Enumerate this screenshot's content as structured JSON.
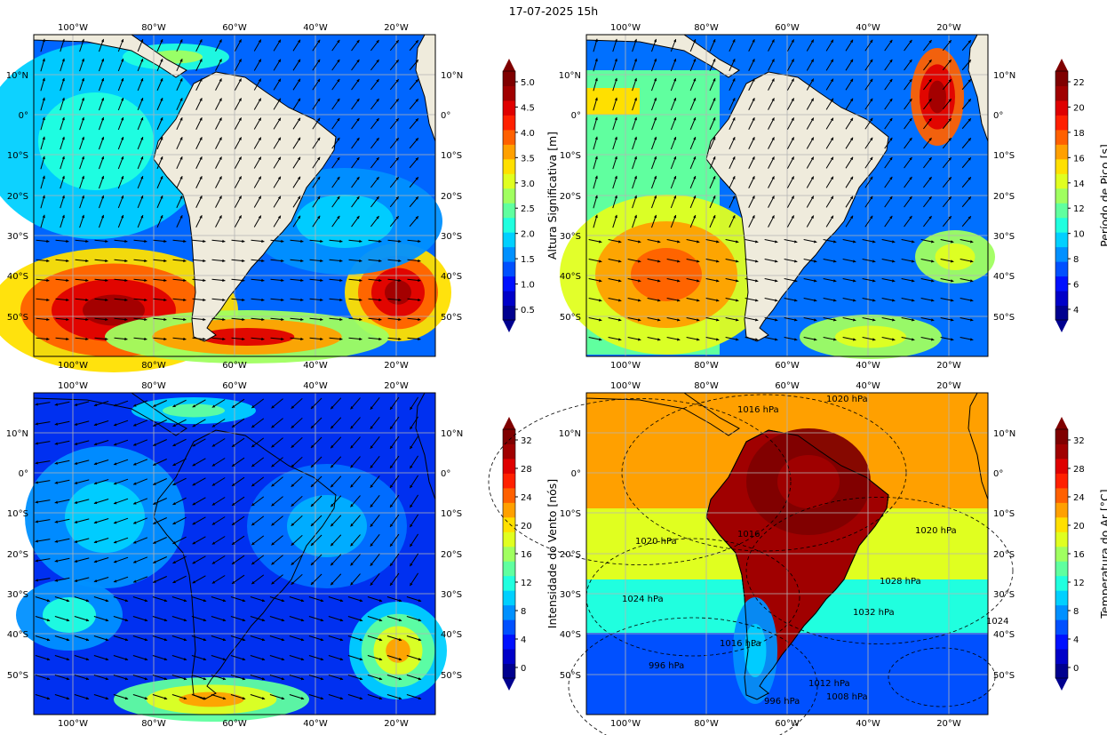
{
  "title": "17-07-2025 15h",
  "axes": {
    "lon_labels": [
      "100°W",
      "80°W",
      "60°W",
      "40°W",
      "20°W"
    ],
    "lat_labels": [
      "10°N",
      "0°",
      "10°S",
      "20°S",
      "30°S",
      "40°S",
      "50°S"
    ]
  },
  "panels": [
    {
      "id": "wave-height",
      "colorbar": {
        "label": "Altura Significativa [m]",
        "ticks": [
          "0.5",
          "1.0",
          "1.5",
          "2.0",
          "2.5",
          "3.0",
          "3.5",
          "4.0",
          "4.5",
          "5.0"
        ],
        "colors": [
          "#00008f",
          "#0000c8",
          "#0010ff",
          "#0050ff",
          "#0090ff",
          "#00d0ff",
          "#20ffdf",
          "#60ff9f",
          "#a0ff60",
          "#e0ff20",
          "#ffe000",
          "#ffa000",
          "#ff6000",
          "#ff2000",
          "#df0000",
          "#a00000",
          "#7f0000"
        ]
      },
      "vectors": "wave direction arrows"
    },
    {
      "id": "peak-period",
      "colorbar": {
        "label": "Período de Pico [s]",
        "ticks": [
          "4",
          "6",
          "8",
          "10",
          "12",
          "14",
          "16",
          "18",
          "20",
          "22"
        ],
        "colors": [
          "#00008f",
          "#0000c8",
          "#0010ff",
          "#0050ff",
          "#0090ff",
          "#00d0ff",
          "#20ffdf",
          "#60ff9f",
          "#a0ff60",
          "#e0ff20",
          "#ffe000",
          "#ffa000",
          "#ff6000",
          "#ff2000",
          "#df0000",
          "#a00000",
          "#7f0000"
        ]
      },
      "vectors": "wave direction arrows"
    },
    {
      "id": "wind-speed",
      "colorbar": {
        "label": "Intensidade do Vento [nós]",
        "ticks": [
          "0",
          "4",
          "8",
          "12",
          "16",
          "20",
          "24",
          "28",
          "32"
        ],
        "colors": [
          "#00008f",
          "#0000c8",
          "#0010ff",
          "#0050ff",
          "#0090ff",
          "#00d0ff",
          "#20ffdf",
          "#60ff9f",
          "#a0ff60",
          "#e0ff20",
          "#ffe000",
          "#ffa000",
          "#ff6000",
          "#ff2000",
          "#df0000",
          "#a00000",
          "#7f0000"
        ]
      },
      "vectors": "wind streamlines"
    },
    {
      "id": "air-temperature",
      "colorbar": {
        "label": "Temperatura do Ar [°C]",
        "ticks": [
          "0",
          "4",
          "8",
          "12",
          "16",
          "20",
          "24",
          "28",
          "32"
        ],
        "colors": [
          "#00008f",
          "#0000c8",
          "#0010ff",
          "#0050ff",
          "#0090ff",
          "#00d0ff",
          "#20ffdf",
          "#60ff9f",
          "#a0ff60",
          "#e0ff20",
          "#ffe000",
          "#ffa000",
          "#ff6000",
          "#ff2000",
          "#df0000",
          "#a00000",
          "#7f0000"
        ]
      },
      "isobar_labels": [
        "1020 hPa",
        "1016 hPa",
        "1020 hPa",
        "1016",
        "1020 hPa",
        "1024 hPa",
        "1028 hPa",
        "1032 hPa",
        "1016 hPa",
        "1024",
        "996 hPa",
        "1012 hPa",
        "1008 hPa",
        "996 hPa"
      ]
    }
  ],
  "colors": {
    "land": "#efebdc",
    "grid": "#b4b4b4"
  }
}
